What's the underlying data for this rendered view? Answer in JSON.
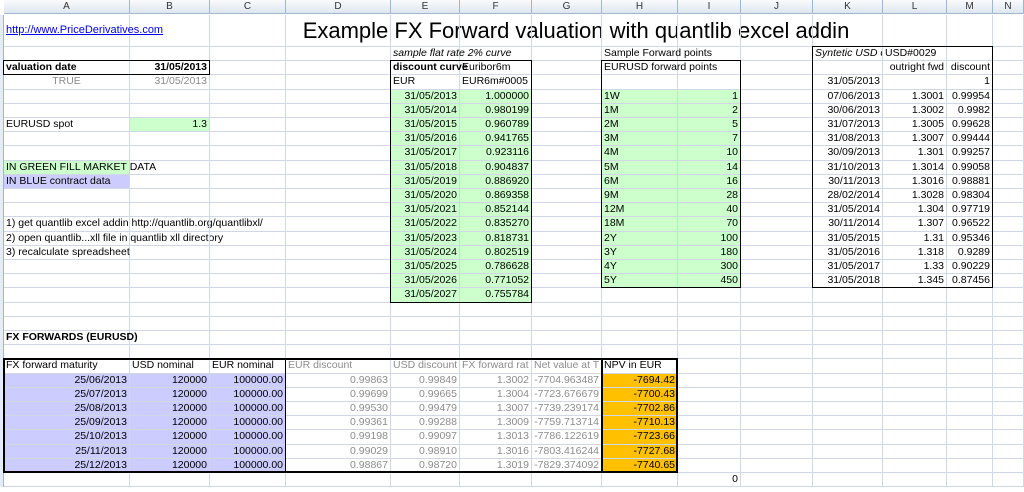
{
  "title": "Example FX Forward valuation with quantlib excel addin",
  "columns": [
    "A",
    "B",
    "C",
    "D",
    "E",
    "F",
    "G",
    "H",
    "I",
    "J",
    "K",
    "L",
    "M",
    "N"
  ],
  "colors": {
    "market_data_fill": "#ccffcc",
    "contract_data_fill": "#ccccff",
    "npv_fill": "#ffc000",
    "link": "#0000ee"
  },
  "cells": [
    {
      "ref": "A1",
      "v": "http://www.PriceDerivatives.com",
      "cls": "link"
    },
    {
      "ref": "E2",
      "v": "sample flat rate 2% curve",
      "cls": "i"
    },
    {
      "ref": "H2",
      "v": "Sample Forward points"
    },
    {
      "ref": "K2",
      "v": "Syntetic USD cu",
      "cls": "i clip"
    },
    {
      "ref": "L2",
      "v": "USD#0029"
    },
    {
      "ref": "A3",
      "v": "valuation date",
      "cls": "b"
    },
    {
      "ref": "B3",
      "v": "31/05/2013",
      "cls": "b r"
    },
    {
      "ref": "E3",
      "v": "discount curve",
      "cls": "b"
    },
    {
      "ref": "F3",
      "v": "Euribor6m"
    },
    {
      "ref": "H3",
      "v": "EURUSD  forward points"
    },
    {
      "ref": "L3",
      "v": "outright fwd",
      "cls": "r"
    },
    {
      "ref": "M3",
      "v": "discount",
      "cls": "r"
    },
    {
      "ref": "A4",
      "v": "TRUE",
      "cls": "c g"
    },
    {
      "ref": "B4",
      "v": "31/05/2013",
      "cls": "r g"
    },
    {
      "ref": "E4",
      "v": "EUR"
    },
    {
      "ref": "F4",
      "v": "EUR6m#0005"
    },
    {
      "ref": "K4",
      "v": "31/05/2013",
      "cls": "r"
    },
    {
      "ref": "M4",
      "v": "1",
      "cls": "r"
    },
    {
      "ref": "A7",
      "v": "EURUSD spot"
    },
    {
      "ref": "B7",
      "v": "1.3",
      "cls": "r"
    },
    {
      "ref": "A10",
      "v": "IN GREEN FILL MARKET DATA"
    },
    {
      "ref": "A11",
      "v": "IN BLUE contract data"
    },
    {
      "ref": "A14",
      "v": "1) get quantlib excel addin http://quantlib.org/quantlibxl/"
    },
    {
      "ref": "A15",
      "v": "2) open quantlib...xll file in quantlib xll directory"
    },
    {
      "ref": "A16",
      "v": "3) recalculate spreadsheet"
    },
    {
      "ref": "A22",
      "v": "FX FORWARDS  (EURUSD)",
      "cls": "b"
    },
    {
      "ref": "A24",
      "v": "FX forward maturity"
    },
    {
      "ref": "B24",
      "v": "USD nominal"
    },
    {
      "ref": "C24",
      "v": "EUR nominal"
    },
    {
      "ref": "D24",
      "v": "EUR discount",
      "cls": "g"
    },
    {
      "ref": "E24",
      "v": "USD discount",
      "cls": "g"
    },
    {
      "ref": "F24",
      "v": "FX forward rat",
      "cls": "g clip"
    },
    {
      "ref": "G24",
      "v": "Net value at T",
      "cls": "g clip"
    },
    {
      "ref": "H24",
      "v": "NPV in EUR"
    },
    {
      "ref": "I32",
      "v": "0",
      "cls": "r"
    }
  ],
  "discount_curve": [
    [
      "31/05/2013",
      "1.000000"
    ],
    [
      "31/05/2014",
      "0.980199"
    ],
    [
      "31/05/2015",
      "0.960789"
    ],
    [
      "31/05/2016",
      "0.941765"
    ],
    [
      "31/05/2017",
      "0.923116"
    ],
    [
      "31/05/2018",
      "0.904837"
    ],
    [
      "31/05/2019",
      "0.886920"
    ],
    [
      "31/05/2020",
      "0.869358"
    ],
    [
      "31/05/2021",
      "0.852144"
    ],
    [
      "31/05/2022",
      "0.835270"
    ],
    [
      "31/05/2023",
      "0.818731"
    ],
    [
      "31/05/2024",
      "0.802519"
    ],
    [
      "31/05/2025",
      "0.786628"
    ],
    [
      "31/05/2026",
      "0.771052"
    ],
    [
      "31/05/2027",
      "0.755784"
    ]
  ],
  "forward_points": [
    [
      "1W",
      "1"
    ],
    [
      "1M",
      "2"
    ],
    [
      "2M",
      "5"
    ],
    [
      "3M",
      "7"
    ],
    [
      "4M",
      "10"
    ],
    [
      "5M",
      "14"
    ],
    [
      "6M",
      "16"
    ],
    [
      "9M",
      "28"
    ],
    [
      "12M",
      "40"
    ],
    [
      "18M",
      "70"
    ],
    [
      "2Y",
      "100"
    ],
    [
      "3Y",
      "180"
    ],
    [
      "4Y",
      "300"
    ],
    [
      "5Y",
      "450"
    ]
  ],
  "usd_curve": [
    [
      "07/06/2013",
      "1.3001",
      "0.99954"
    ],
    [
      "30/06/2013",
      "1.3002",
      "0.9982"
    ],
    [
      "31/07/2013",
      "1.3005",
      "0.99628"
    ],
    [
      "31/08/2013",
      "1.3007",
      "0.99444"
    ],
    [
      "30/09/2013",
      "1.301",
      "0.99257"
    ],
    [
      "31/10/2013",
      "1.3014",
      "0.99058"
    ],
    [
      "30/11/2013",
      "1.3016",
      "0.98881"
    ],
    [
      "28/02/2014",
      "1.3028",
      "0.98304"
    ],
    [
      "31/05/2014",
      "1.304",
      "0.97719"
    ],
    [
      "30/11/2014",
      "1.307",
      "0.96522"
    ],
    [
      "31/05/2015",
      "1.31",
      "0.95346"
    ],
    [
      "31/05/2016",
      "1.318",
      "0.9289"
    ],
    [
      "31/05/2017",
      "1.33",
      "0.90229"
    ],
    [
      "31/05/2018",
      "1.345",
      "0.87456"
    ]
  ],
  "fx_forwards": [
    [
      "25/06/2013",
      "120000",
      "100000.00",
      "0.99863",
      "0.99849",
      "1.3002",
      "-7704.963487",
      "-7694.42"
    ],
    [
      "25/07/2013",
      "120000",
      "100000.00",
      "0.99699",
      "0.99665",
      "1.3004",
      "-7723.676679",
      "-7700.43"
    ],
    [
      "25/08/2013",
      "120000",
      "100000.00",
      "0.99530",
      "0.99479",
      "1.3007",
      "-7739.239174",
      "-7702.86"
    ],
    [
      "25/09/2013",
      "120000",
      "100000.00",
      "0.99361",
      "0.99288",
      "1.3009",
      "-7759.713714",
      "-7710.13"
    ],
    [
      "25/10/2013",
      "120000",
      "100000.00",
      "0.99198",
      "0.99097",
      "1.3013",
      "-7786.122619",
      "-7723.66"
    ],
    [
      "25/11/2013",
      "120000",
      "100000.00",
      "0.99029",
      "0.98910",
      "1.3016",
      "-7803.416244",
      "-7727.68"
    ],
    [
      "25/12/2013",
      "120000",
      "100000.00",
      "0.98867",
      "0.98720",
      "1.3019",
      "-7829.374092",
      "-7740.65"
    ]
  ]
}
